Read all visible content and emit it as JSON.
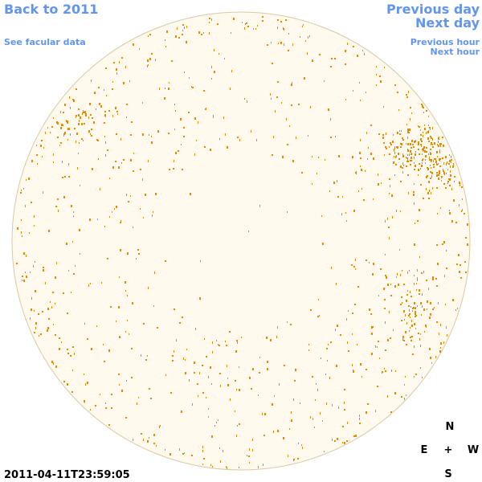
{
  "links": {
    "back": "Back to 2011",
    "facular": "See facular data",
    "previous_day": "Previous day",
    "next_day": "Next day",
    "previous_hour": "Previous hour",
    "next_hour": "Next hour"
  },
  "timestamp": "2011-04-11T23:59:05",
  "compass": {
    "north": "N",
    "east": "E",
    "center": "+",
    "west": "W",
    "south": "S"
  }
}
